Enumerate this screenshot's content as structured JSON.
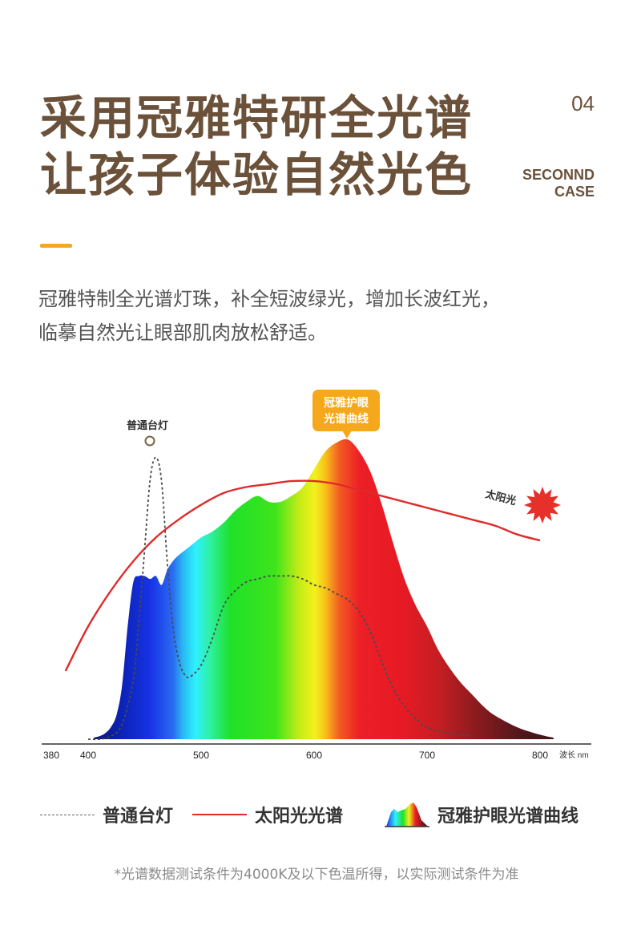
{
  "header": {
    "title_line1": "采用冠雅特研全光谱",
    "title_line2": "让孩子体验自然光色",
    "page_number": "04",
    "case_line1": "SECONND",
    "case_line2": "CASE"
  },
  "description": {
    "line1": "冠雅特制全光谱灯珠，补全短波绿光，增加长波红光，",
    "line2": "临摹自然光让眼部肌肉放松舒适。"
  },
  "chart_data": {
    "type": "area",
    "title": "",
    "xlabel": "波长 nm",
    "ylabel": "",
    "x_ticks": [
      380,
      400,
      500,
      600,
      700,
      800
    ],
    "xlim": [
      380,
      800
    ],
    "ylim": [
      0,
      1
    ],
    "grid": false,
    "legend_position": "bottom",
    "series": [
      {
        "name": "冠雅护眼光谱曲线",
        "style": "spectrum-gradient-fill",
        "callout": "冠雅护眼光谱曲线",
        "x": [
          405,
          410,
          415,
          420,
          425,
          430,
          435,
          440,
          445,
          450,
          455,
          460,
          465,
          470,
          475,
          480,
          490,
          500,
          510,
          520,
          530,
          540,
          550,
          560,
          570,
          580,
          590,
          600,
          610,
          620,
          630,
          640,
          650,
          660,
          670,
          680,
          690,
          700,
          710,
          720,
          730,
          740,
          750,
          760,
          780,
          800,
          812
        ],
        "y": [
          0.005,
          0.01,
          0.02,
          0.04,
          0.08,
          0.18,
          0.38,
          0.53,
          0.55,
          0.55,
          0.54,
          0.55,
          0.52,
          0.57,
          0.6,
          0.62,
          0.65,
          0.68,
          0.7,
          0.73,
          0.77,
          0.8,
          0.82,
          0.8,
          0.8,
          0.82,
          0.85,
          0.91,
          0.97,
          1.0,
          1.01,
          0.97,
          0.9,
          0.79,
          0.66,
          0.54,
          0.45,
          0.38,
          0.3,
          0.24,
          0.19,
          0.15,
          0.11,
          0.08,
          0.04,
          0.015,
          0.005
        ]
      },
      {
        "name": "太阳光光谱",
        "style": "solid-red-line",
        "callout": "太阳光",
        "x": [
          380,
          400,
          420,
          440,
          460,
          480,
          500,
          520,
          540,
          560,
          580,
          600,
          620,
          640,
          660,
          680,
          700,
          720,
          740,
          760,
          780,
          800
        ],
        "y": [
          0.23,
          0.38,
          0.5,
          0.6,
          0.68,
          0.74,
          0.79,
          0.83,
          0.85,
          0.86,
          0.87,
          0.87,
          0.86,
          0.84,
          0.82,
          0.8,
          0.78,
          0.76,
          0.74,
          0.72,
          0.69,
          0.67
        ]
      },
      {
        "name": "普通台灯",
        "style": "dotted-line",
        "callout": "普通台灯",
        "x": [
          400,
          410,
          420,
          430,
          440,
          445,
          450,
          455,
          460,
          465,
          470,
          475,
          480,
          485,
          490,
          500,
          510,
          520,
          530,
          540,
          550,
          560,
          570,
          580,
          590,
          600,
          610,
          620,
          630,
          640,
          650,
          660,
          670,
          680,
          690,
          700,
          720,
          740
        ],
        "y": [
          0.0,
          0.0,
          0.01,
          0.05,
          0.2,
          0.4,
          0.64,
          0.88,
          0.95,
          0.87,
          0.6,
          0.38,
          0.27,
          0.22,
          0.21,
          0.25,
          0.34,
          0.45,
          0.5,
          0.53,
          0.54,
          0.55,
          0.55,
          0.55,
          0.54,
          0.52,
          0.51,
          0.49,
          0.47,
          0.43,
          0.36,
          0.26,
          0.17,
          0.11,
          0.07,
          0.04,
          0.02,
          0.01
        ]
      }
    ],
    "colors": {
      "sunlight": "#e02a2a",
      "lamp": "#555555",
      "callout_bg": "#f5a81c",
      "sun_icon": "#e8302a",
      "title_brown": "#6b5139"
    }
  },
  "legend": {
    "lamp_label": "普通台灯",
    "sun_label": "太阳光光谱",
    "gy_label": "冠雅护眼光谱曲线"
  },
  "footnote": "*光谱数据测试条件为4000K及以下色温所得，以实际测试条件为准"
}
